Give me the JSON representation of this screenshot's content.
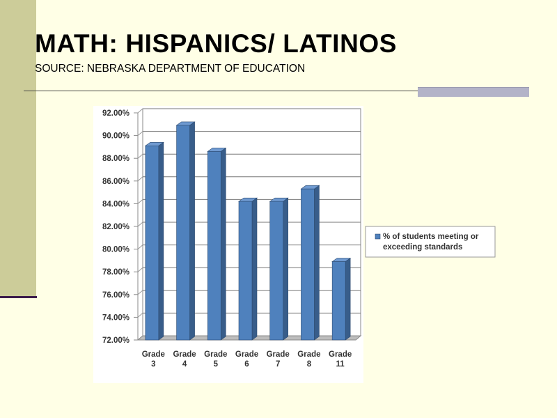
{
  "slide": {
    "title": "MATH: HISPANICS/ LATINOS",
    "subtitle": "SOURCE: NEBRASKA DEPARTMENT OF EDUCATION"
  },
  "colors": {
    "background": "#ffffe6",
    "sidebar": "#cccc99",
    "bar_front": "#4f81bd",
    "bar_side": "#385d8a",
    "bar_top": "#6f9ad1"
  },
  "chart_data": {
    "type": "bar",
    "title": "",
    "xlabel": "",
    "ylabel": "",
    "ylim": [
      72,
      92
    ],
    "y_tick_labels": [
      "72.00%",
      "74.00%",
      "76.00%",
      "78.00%",
      "80.00%",
      "82.00%",
      "84.00%",
      "86.00%",
      "88.00%",
      "90.00%",
      "92.00%"
    ],
    "categories": [
      [
        "Grade",
        "3"
      ],
      [
        "Grade",
        "4"
      ],
      [
        "Grade",
        "5"
      ],
      [
        "Grade",
        "6"
      ],
      [
        "Grade",
        "7"
      ],
      [
        "Grade",
        "8"
      ],
      [
        "Grade",
        "11"
      ]
    ],
    "series": [
      {
        "name": "% of students meeting or exceeding standards",
        "legend_lines": [
          "% of students meeting or",
          "exceeding standards"
        ],
        "values": [
          89.1,
          90.9,
          88.6,
          84.2,
          84.2,
          85.3,
          78.9
        ]
      }
    ],
    "grid": true,
    "legend_position": "right"
  }
}
